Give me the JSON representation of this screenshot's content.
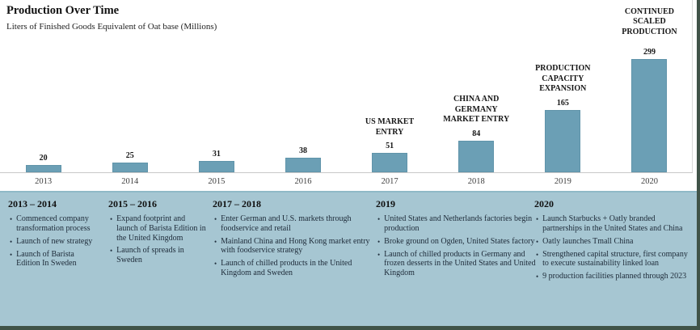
{
  "header": {
    "title": "Production Over Time",
    "subtitle": "Liters of Finished Goods Equivalent of Oat base (Millions)"
  },
  "chart_data": {
    "type": "bar",
    "categories": [
      "2013",
      "2014",
      "2015",
      "2016",
      "2017",
      "2018",
      "2019",
      "2020"
    ],
    "values": [
      20,
      25,
      31,
      38,
      51,
      84,
      165,
      299
    ],
    "annotations": [
      null,
      null,
      null,
      null,
      "US MARKET\nENTRY",
      "CHINA AND\nGERMANY\nMARKET ENTRY",
      "PRODUCTION\nCAPACITY\nEXPANSION",
      "CONTINUED\nSCALED\nPRODUCTION"
    ],
    "title": "Production Over Time",
    "xlabel": "",
    "ylabel": "Liters of Finished Goods Equivalent of Oat base (Millions)",
    "ylim": [
      0,
      299
    ],
    "grid": false,
    "legend": "none",
    "bar_color": "#6b9fb5"
  },
  "timeline": {
    "columns": [
      {
        "period": "2013 – 2014",
        "bullets": [
          "Commenced company transformation process",
          "Launch of new strategy",
          "Launch of Barista Edition In Sweden"
        ]
      },
      {
        "period": "2015 – 2016",
        "bullets": [
          "Expand footprint and launch of Barista Edition in the United Kingdom",
          "Launch of spreads in Sweden"
        ]
      },
      {
        "period": "2017 – 2018",
        "bullets": [
          "Enter German and U.S. markets through foodservice and retail",
          "Mainland China and Hong Kong market entry with foodservice strategy",
          "Launch of chilled products in the United Kingdom and Sweden"
        ]
      },
      {
        "period": "2019",
        "bullets": [
          "United States and Netherlands factories begin production",
          "Broke ground on Ogden, United States factory",
          "Launch of chilled products in Germany and frozen desserts in the United States and United Kingdom"
        ]
      },
      {
        "period": "2020",
        "bullets": [
          "Launch Starbucks + Oatly branded partnerships in the United States and China",
          "Oatly launches Tmall China",
          "Strengthened capital structure, first company to execute sustainability linked loan",
          "9 production facilities planned through 2023"
        ]
      }
    ]
  },
  "colors": {
    "bar": "#6b9fb5",
    "panel_background": "#a6c6d2",
    "panel_top_border": "#8fb9c7",
    "frame_strip": "#405348",
    "axis_line": "#c9c9c9"
  }
}
